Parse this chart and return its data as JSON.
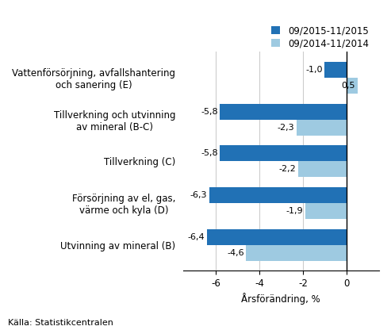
{
  "categories": [
    "Utvinning av mineral (B)",
    "Försörjning av el, gas,\nvärme och kyla (D)",
    "Tillverkning (C)",
    "Tillverkning och utvinning\nav mineral (B-C)",
    "Vattenförsörjning, avfallshantering\noch sanering (E)"
  ],
  "series1_values": [
    -6.4,
    -6.3,
    -5.8,
    -5.8,
    -1.0
  ],
  "series2_values": [
    -4.6,
    -1.9,
    -2.2,
    -2.3,
    0.5
  ],
  "series1_label": "09/2015-11/2015",
  "series2_label": "09/2014-11/2014",
  "series1_color": "#2171b5",
  "series2_color": "#9ecae1",
  "xlabel": "Årsförändring, %",
  "xlim": [
    -7.5,
    1.5
  ],
  "xticks": [
    -6,
    -4,
    -2,
    0
  ],
  "source": "Källa: Statistikcentralen",
  "bar_height": 0.38,
  "label_fontsize": 8,
  "tick_fontsize": 8.5,
  "legend_fontsize": 8.5,
  "value_labels_1": [
    "-6,4",
    "-6,3",
    "-5,8",
    "-5,8",
    "-1,0"
  ],
  "value_labels_2": [
    "-4,6",
    "-1,9",
    "-2,2",
    "-2,3",
    "0,5"
  ]
}
